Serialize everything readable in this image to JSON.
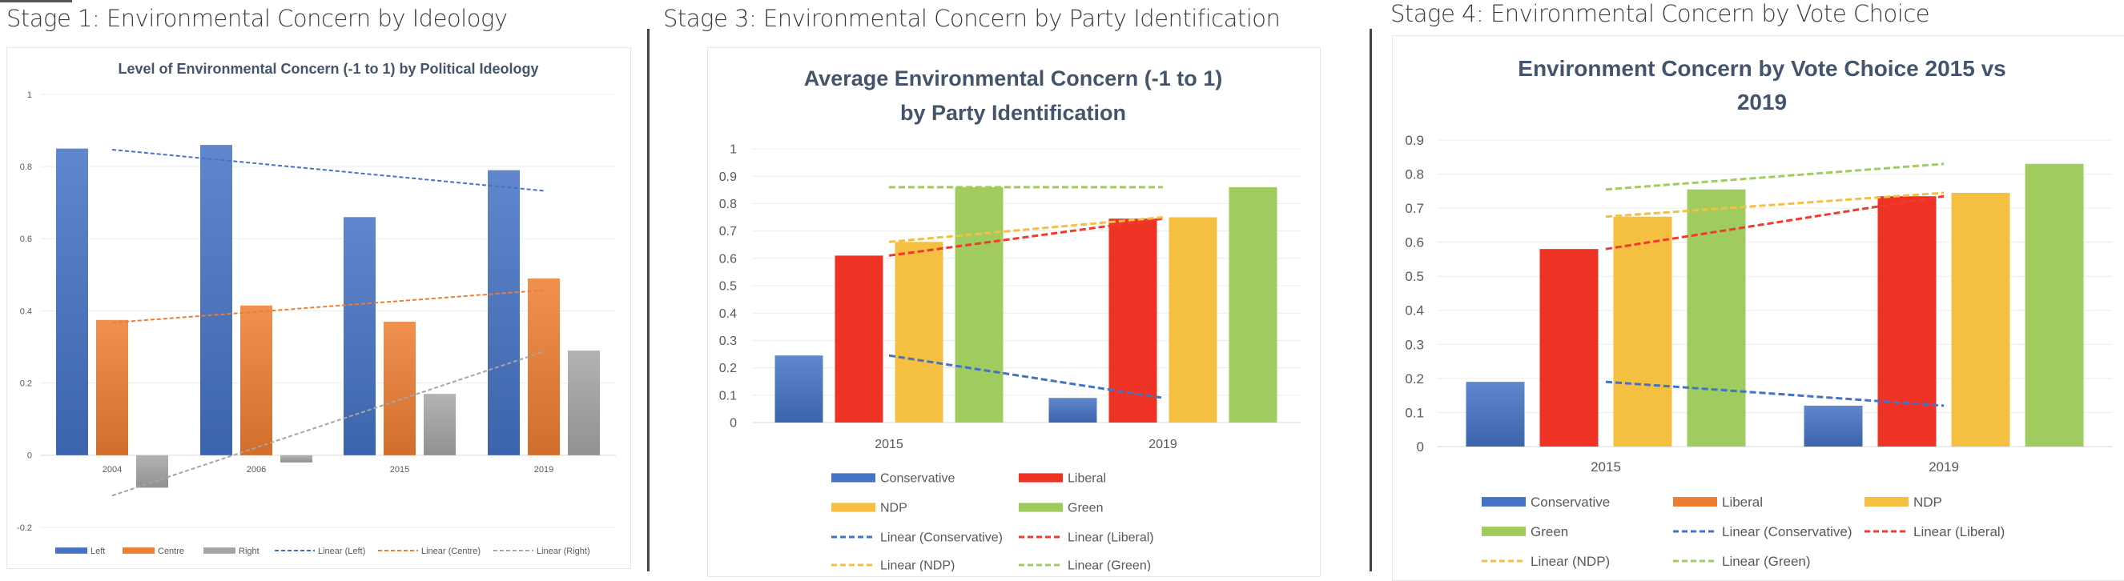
{
  "panels": [
    {
      "heading": "Stage 1: Environmental Concern by Ideology"
    },
    {
      "heading": "Stage 3: Environmental Concern by Party Identification"
    },
    {
      "heading": "Stage 4: Environmental Concern by Vote Choice"
    }
  ],
  "chart_data": [
    {
      "type": "bar",
      "title": "Level of Environmental Concern (-1 to 1) by Political Ideology",
      "title_lines": [
        "Level of Environmental Concern (-1 to 1) by Political Ideology"
      ],
      "xlabel": "",
      "ylabel": "",
      "categories": [
        "2004",
        "2006",
        "2015",
        "2019"
      ],
      "ylim": [
        -0.2,
        1
      ],
      "yticks": [
        "-0.2",
        "0",
        "0.2",
        "0.4",
        "0.6",
        "0.8",
        "1"
      ],
      "grid": true,
      "legend_position": "bottom",
      "series": [
        {
          "name": "Left",
          "color": "#4472C4",
          "values": [
            0.85,
            0.86,
            0.66,
            0.79
          ]
        },
        {
          "name": "Centre",
          "color": "#ED7D31",
          "values": [
            0.375,
            0.415,
            0.37,
            0.49
          ]
        },
        {
          "name": "Right",
          "color": "#A5A5A5",
          "values": [
            -0.09,
            -0.02,
            0.17,
            0.29
          ]
        }
      ],
      "trendlines": [
        {
          "name": "Linear (Left)",
          "series": "Left",
          "color": "#4472C4"
        },
        {
          "name": "Linear (Centre)",
          "series": "Centre",
          "color": "#ED7D31"
        },
        {
          "name": "Linear (Right)",
          "series": "Right",
          "color": "#A5A5A5"
        }
      ]
    },
    {
      "type": "bar",
      "title": "Average Environmental Concern (-1 to 1) by Party Identification",
      "title_lines": [
        "Average Environmental Concern (-1 to 1)",
        "by Party Identification"
      ],
      "xlabel": "",
      "ylabel": "",
      "categories": [
        "2015",
        "2019"
      ],
      "ylim": [
        0,
        1
      ],
      "yticks": [
        "0",
        "0.1",
        "0.2",
        "0.3",
        "0.4",
        "0.5",
        "0.6",
        "0.7",
        "0.8",
        "0.9",
        "1"
      ],
      "grid": true,
      "legend_position": "bottom",
      "series": [
        {
          "name": "Conservative",
          "color": "#4472C4",
          "values": [
            0.245,
            0.09
          ]
        },
        {
          "name": "Liberal",
          "color": "#EE3224",
          "values": [
            0.61,
            0.745
          ]
        },
        {
          "name": "NDP",
          "color": "#F5BF42",
          "values": [
            0.66,
            0.75
          ]
        },
        {
          "name": "Green",
          "color": "#A0CC5F",
          "values": [
            0.86,
            0.86
          ]
        }
      ],
      "trendlines": [
        {
          "name": "Linear (Conservative)",
          "series": "Conservative",
          "color": "#4472C4"
        },
        {
          "name": "Linear (Liberal)",
          "series": "Liberal",
          "color": "#F03A2E"
        },
        {
          "name": "Linear (NDP)",
          "series": "NDP",
          "color": "#F5BF42"
        },
        {
          "name": "Linear (Green)",
          "series": "Green",
          "color": "#A0CC5F"
        }
      ]
    },
    {
      "type": "bar",
      "title": "Environment Concern by Vote Choice 2015 vs 2019",
      "title_lines": [
        "Environment Concern by Vote Choice 2015 vs",
        "2019"
      ],
      "xlabel": "",
      "ylabel": "",
      "categories": [
        "2015",
        "2019"
      ],
      "ylim": [
        0,
        0.9
      ],
      "yticks": [
        "0",
        "0.1",
        "0.2",
        "0.3",
        "0.4",
        "0.5",
        "0.6",
        "0.7",
        "0.8",
        "0.9"
      ],
      "grid": true,
      "legend_position": "bottom",
      "series": [
        {
          "name": "Conservative",
          "color": "#4472C4",
          "values": [
            0.19,
            0.12
          ]
        },
        {
          "name": "Liberal",
          "color": "#EE3224",
          "legend_color": "#ED7D31",
          "values": [
            0.58,
            0.735
          ]
        },
        {
          "name": "NDP",
          "color": "#F5BF42",
          "values": [
            0.675,
            0.745
          ]
        },
        {
          "name": "Green",
          "color": "#A0CC5F",
          "values": [
            0.755,
            0.83
          ]
        }
      ],
      "trendlines": [
        {
          "name": "Linear (Conservative)",
          "series": "Conservative",
          "color": "#4472C4"
        },
        {
          "name": "Linear (Liberal)",
          "series": "Liberal",
          "color": "#F03A2E"
        },
        {
          "name": "Linear (NDP)",
          "series": "NDP",
          "color": "#F5BF42"
        },
        {
          "name": "Linear (Green)",
          "series": "Green",
          "color": "#A0CC5F"
        }
      ]
    }
  ]
}
